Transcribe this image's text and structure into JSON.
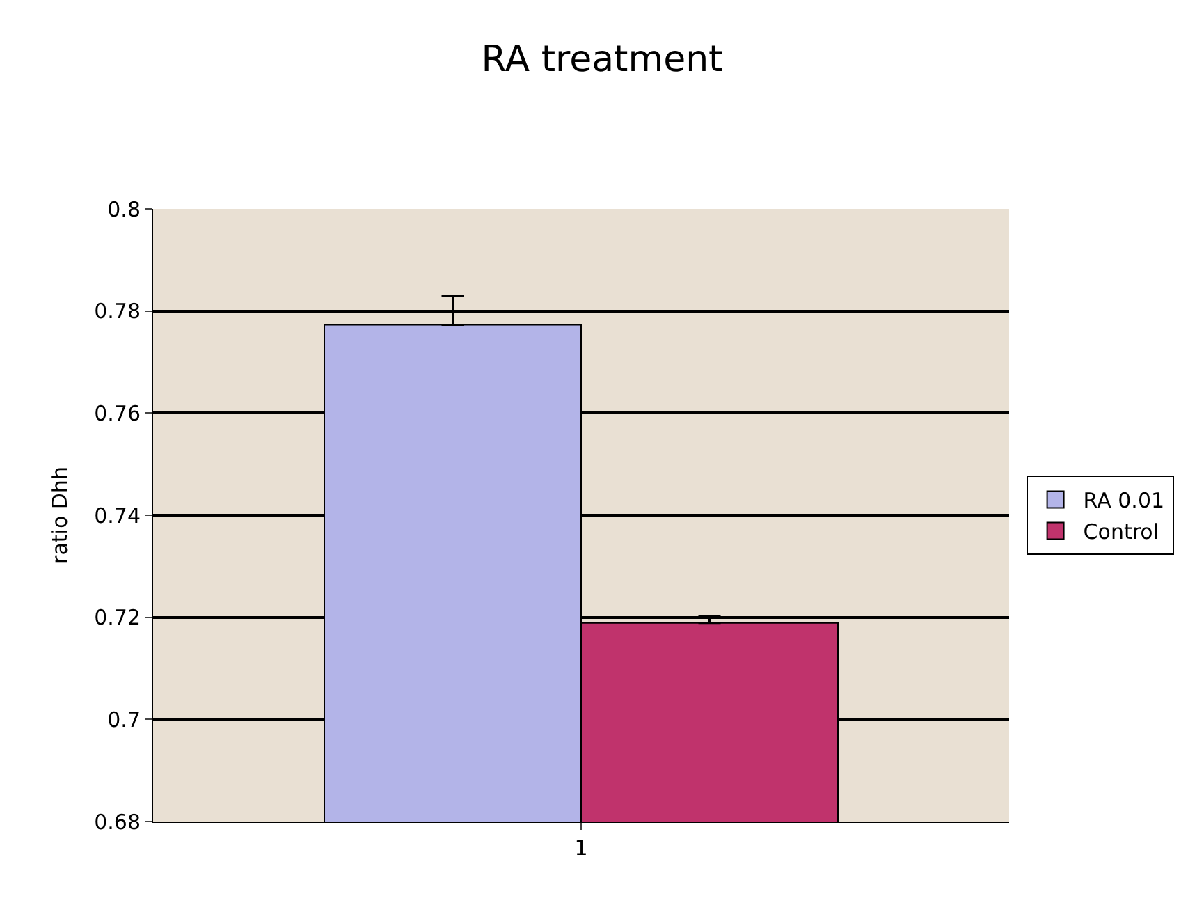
{
  "chart_data": {
    "type": "bar",
    "title": "RA treatment",
    "ylabel": "ratio Dhh",
    "categories": [
      "1"
    ],
    "series": [
      {
        "name": "RA 0.01",
        "color": "#b3b4e8",
        "values": [
          0.7773
        ],
        "errors": [
          [
            0.7773,
            0.7829
          ]
        ]
      },
      {
        "name": "Control",
        "color": "#c0336c",
        "values": [
          0.7189
        ],
        "errors": [
          [
            0.7189,
            0.7203
          ]
        ]
      }
    ],
    "ylim": [
      0.68,
      0.8
    ],
    "yticks": [
      0.68,
      0.7,
      0.72,
      0.74,
      0.76,
      0.78,
      0.8
    ],
    "grid": "y",
    "legend": "right"
  }
}
